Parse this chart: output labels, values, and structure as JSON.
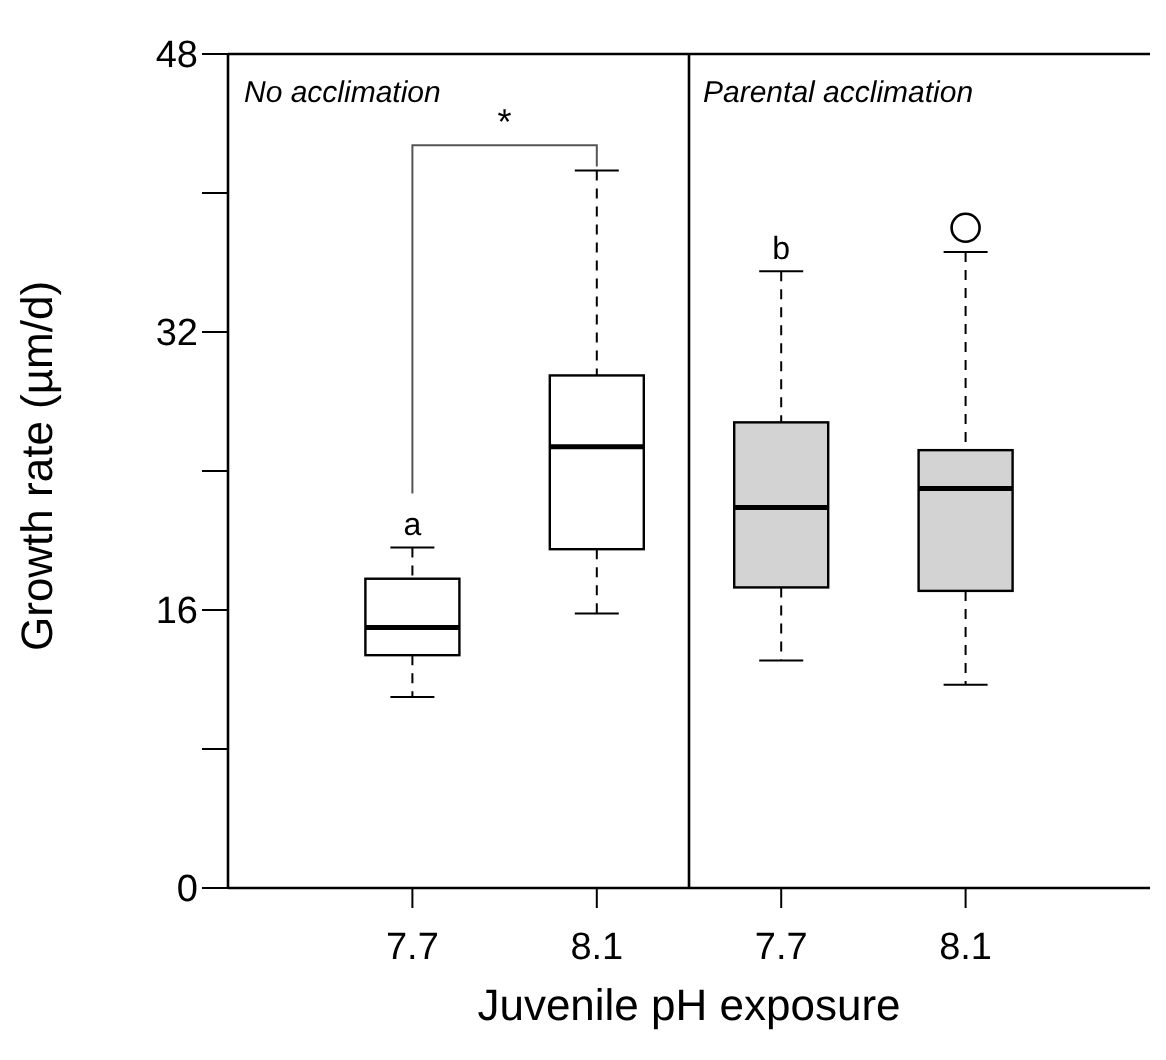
{
  "chart_data": {
    "type": "box",
    "xlabel": "Juvenile pH exposure",
    "ylabel": "Growth rate (µm/d)",
    "categories": [
      "7.7",
      "8.1",
      "7.7",
      "8.1"
    ],
    "colors": [
      "#ffffff",
      "#ffffff",
      "#d3d3d3",
      "#d3d3d3"
    ],
    "boxes": [
      {
        "low": 11.0,
        "q1": 13.4,
        "median": 15.0,
        "q3": 17.8,
        "high": 19.6
      },
      {
        "low": 15.8,
        "q1": 19.5,
        "median": 25.4,
        "q3": 29.5,
        "high": 41.3
      },
      {
        "low": 13.1,
        "q1": 17.3,
        "median": 21.9,
        "q3": 26.8,
        "high": 35.5
      },
      {
        "low": 11.7,
        "q1": 17.1,
        "median": 23.0,
        "q3": 25.2,
        "high": 36.6,
        "outliers": [
          38.0
        ]
      }
    ],
    "ylim": [
      0,
      48
    ],
    "yticks": [
      0,
      {
        "value": 8,
        "label": null
      },
      16,
      {
        "value": 24,
        "label": null
      },
      32,
      {
        "value": 40,
        "label": null
      },
      48
    ],
    "annotations": [
      "No acclimation",
      "Parental acclimation",
      "*",
      "a",
      "b"
    ]
  }
}
